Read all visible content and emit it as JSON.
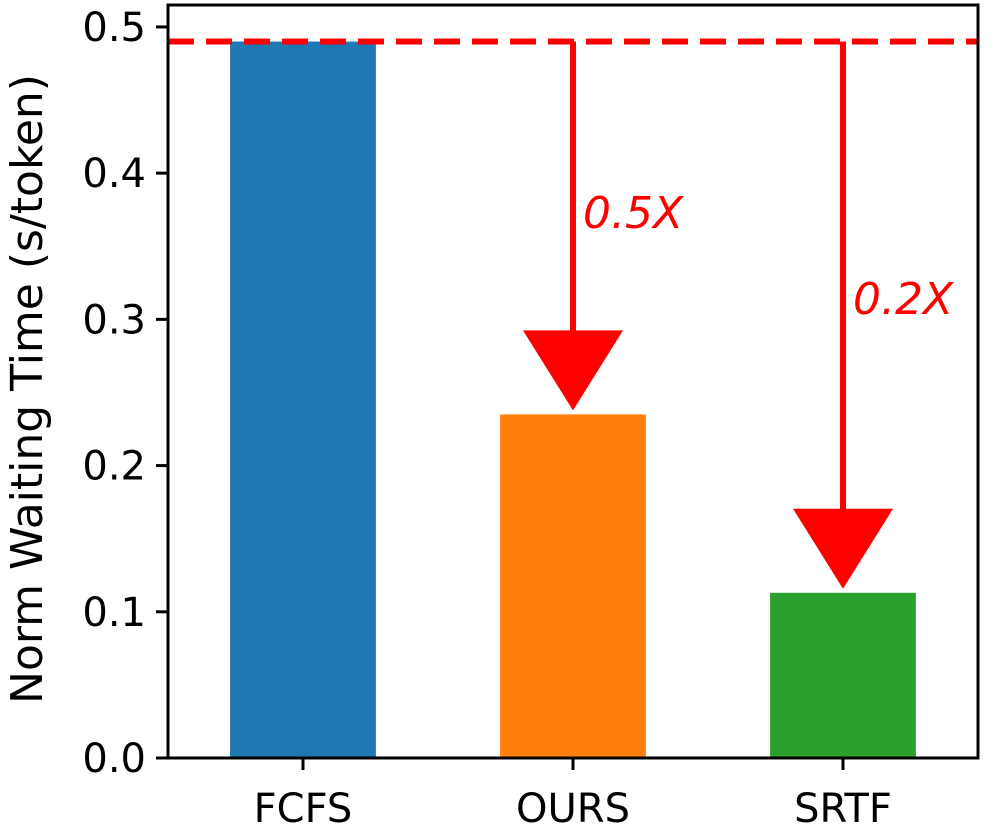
{
  "chart_data": {
    "type": "bar",
    "categories": [
      "FCFS",
      "OURS",
      "SRTF"
    ],
    "values": [
      0.49,
      0.235,
      0.113
    ],
    "title": "",
    "xlabel": "",
    "ylabel": "Norm Waiting Time (s/token)",
    "ylim": [
      0,
      0.515
    ],
    "yticks": [
      "0.0",
      "0.1",
      "0.2",
      "0.3",
      "0.4",
      "0.5"
    ],
    "grid": false,
    "bar_colors": [
      "#1f77b4",
      "#ff7f0e",
      "#2ca02c"
    ],
    "reference_line": {
      "value": 0.49,
      "style": "dashed",
      "color": "#ff0000"
    },
    "annotations": [
      {
        "text": "0.5X",
        "category": "OURS",
        "from": 0.49,
        "to": 0.235,
        "color": "#ff0000"
      },
      {
        "text": "0.2X",
        "category": "SRTF",
        "from": 0.49,
        "to": 0.113,
        "color": "#ff0000"
      }
    ]
  }
}
